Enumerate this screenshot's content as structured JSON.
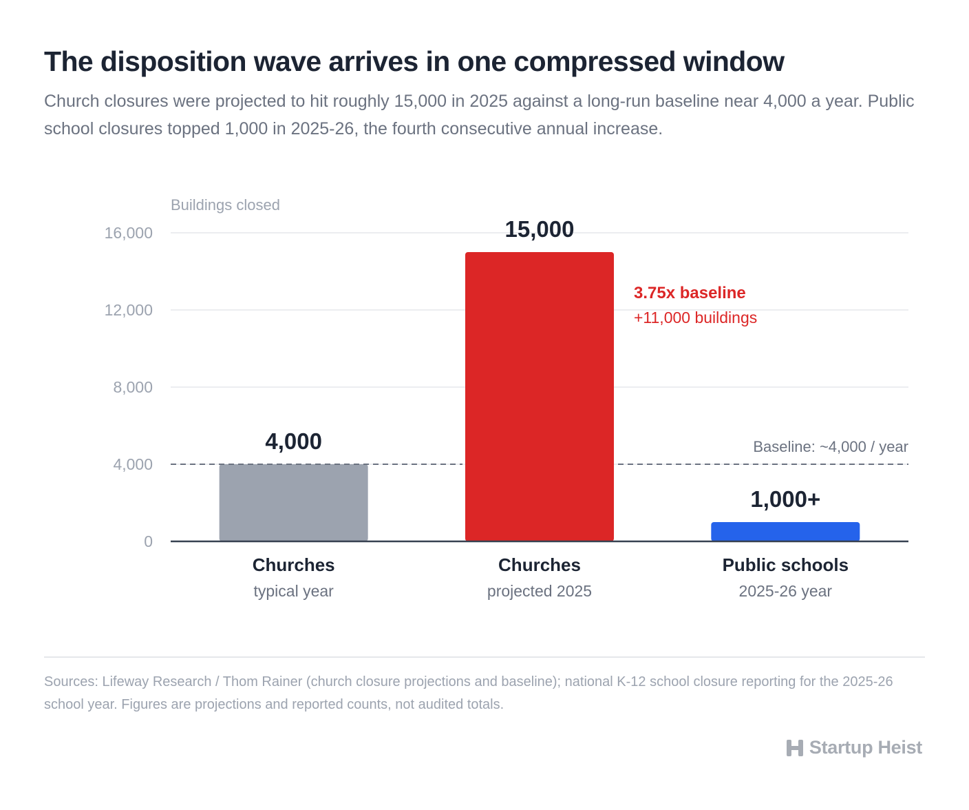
{
  "header": {
    "title": "The disposition wave arrives in one compressed window",
    "subtitle": "Church closures were projected to hit roughly 15,000 in 2025 against a long-run baseline near 4,000 a year. Public school closures topped 1,000 in 2025-26, the fourth consecutive annual increase."
  },
  "chart_data": {
    "type": "bar",
    "ylabel": "Buildings closed",
    "ylim": [
      0,
      16000
    ],
    "yticks": [
      0,
      4000,
      8000,
      12000,
      16000
    ],
    "ytick_labels": [
      "0",
      "4,000",
      "8,000",
      "12,000",
      "16,000"
    ],
    "grid": true,
    "bars": [
      {
        "category": "Churches",
        "sublabel": "typical year",
        "value": 4000,
        "value_label": "4,000",
        "color": "#9ca3af"
      },
      {
        "category": "Churches",
        "sublabel": "projected 2025",
        "value": 15000,
        "value_label": "15,000",
        "color": "#dc2626"
      },
      {
        "category": "Public schools",
        "sublabel": "2025-26 year",
        "value": 1000,
        "value_label": "1,000+",
        "color": "#2563eb"
      }
    ],
    "baseline": {
      "value": 4000,
      "label": "Baseline: ~4,000 / year"
    },
    "annotation": {
      "line1": "3.75x baseline",
      "line2": "+11,000 buildings",
      "color": "#dc2626"
    }
  },
  "footer": {
    "sources": "Sources: Lifeway Research / Thom Rainer (church closure projections and baseline); national K-12 school closure reporting for the 2025-26 school year. Figures are projections and reported counts, not audited totals.",
    "brand": "Startup Heist"
  },
  "colors": {
    "text_dark": "#1c2433",
    "text_muted": "#6b7280",
    "axis_text": "#9ca3af",
    "grid": "#e5e7eb",
    "baseline_line": "#6b7280"
  }
}
